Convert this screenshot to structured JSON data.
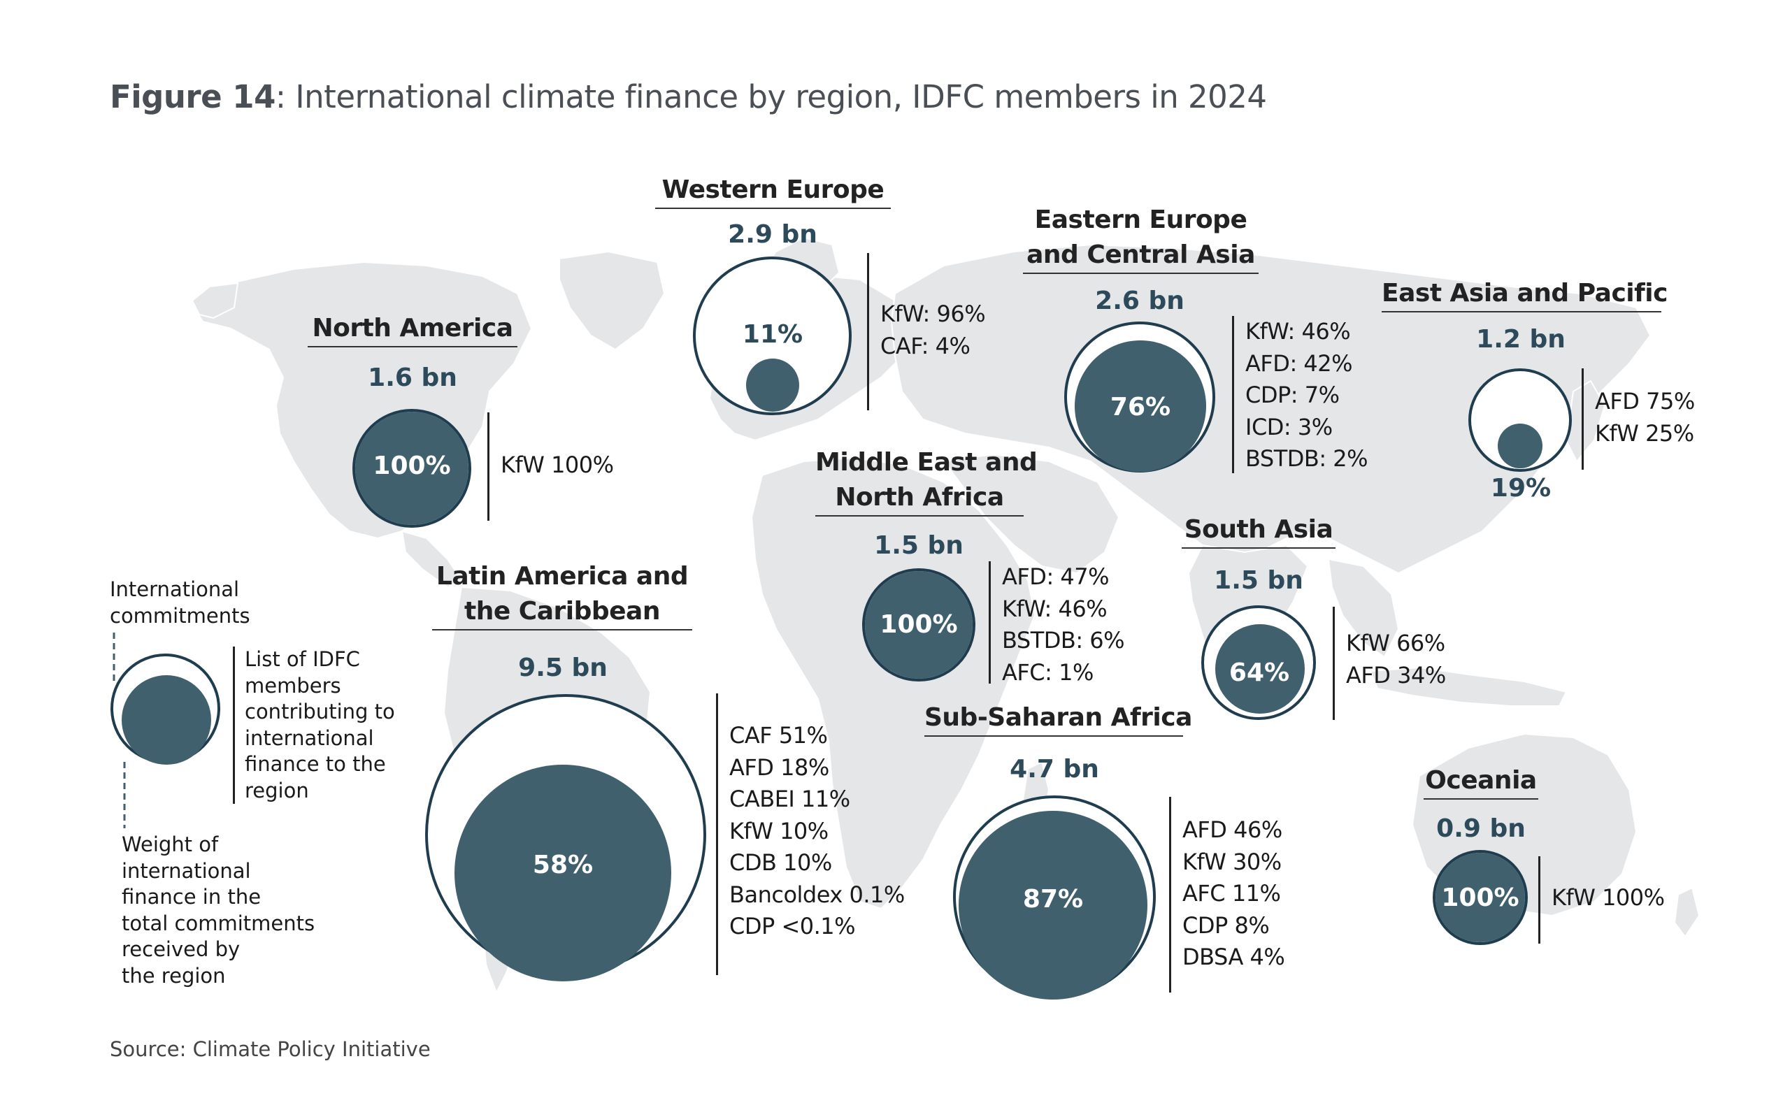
{
  "figure": {
    "label": "Figure 14",
    "title": ": International climate finance by region, IDFC members in 2024",
    "source": "Source: Climate Policy Initiative"
  },
  "colors": {
    "circle_fill": "#41606e",
    "circle_outline": "#1f3d4e",
    "amount_text": "#2d4a5a",
    "map_land": "#e4e6e8"
  },
  "legend": {
    "top_label": [
      "International",
      "commitments"
    ],
    "right_label": [
      "List of IDFC",
      "members",
      "contributing to",
      "international",
      "finance to the",
      "region"
    ],
    "bottom_label": [
      "Weight of",
      "international",
      "finance in the",
      "total commitments",
      "received by",
      "the region"
    ]
  },
  "regions": [
    {
      "id": "north-america",
      "name": [
        "North America"
      ],
      "amount": "1.6 bn",
      "share": "100%",
      "share_value": 100,
      "members": [
        "KfW 100%"
      ]
    },
    {
      "id": "western-europe",
      "name": [
        "Western Europe"
      ],
      "amount": "2.9 bn",
      "share": "11%",
      "share_value": 11,
      "members": [
        "KfW: 96%",
        "CAF: 4%"
      ]
    },
    {
      "id": "eastern-europe-central-asia",
      "name": [
        "Eastern Europe",
        "and Central Asia"
      ],
      "amount": "2.6 bn",
      "share": "76%",
      "share_value": 76,
      "members": [
        "KfW: 46%",
        "AFD: 42%",
        "CDP: 7%",
        "ICD: 3%",
        "BSTDB: 2%"
      ]
    },
    {
      "id": "east-asia-pacific",
      "name": [
        "East Asia and Pacific"
      ],
      "amount": "1.2 bn",
      "share": "19%",
      "share_value": 19,
      "members": [
        "AFD 75%",
        "KfW 25%"
      ]
    },
    {
      "id": "middle-east-north-africa",
      "name": [
        "Middle East and",
        "North Africa"
      ],
      "amount": "1.5 bn",
      "share": "100%",
      "share_value": 100,
      "members": [
        "AFD: 47%",
        "KfW: 46%",
        "BSTDB: 6%",
        "AFC: 1%"
      ]
    },
    {
      "id": "south-asia",
      "name": [
        "South Asia"
      ],
      "amount": "1.5 bn",
      "share": "64%",
      "share_value": 64,
      "members": [
        "KfW 66%",
        "AFD 34%"
      ]
    },
    {
      "id": "latin-america-caribbean",
      "name": [
        "Latin America and",
        "the Caribbean"
      ],
      "amount": "9.5 bn",
      "share": "58%",
      "share_value": 58,
      "members": [
        "CAF 51%",
        "AFD 18%",
        "CABEI 11%",
        "KfW 10%",
        "CDB 10%",
        "Bancoldex 0.1%",
        "CDP <0.1%"
      ]
    },
    {
      "id": "sub-saharan-africa",
      "name": [
        "Sub-Saharan Africa"
      ],
      "amount": "4.7 bn",
      "share": "87%",
      "share_value": 87,
      "members": [
        "AFD 46%",
        "KfW 30%",
        "AFC 11%",
        "CDP 8%",
        "DBSA 4%"
      ]
    },
    {
      "id": "oceania",
      "name": [
        "Oceania"
      ],
      "amount": "0.9 bn",
      "share": "100%",
      "share_value": 100,
      "members": [
        "KfW 100%"
      ]
    }
  ]
}
